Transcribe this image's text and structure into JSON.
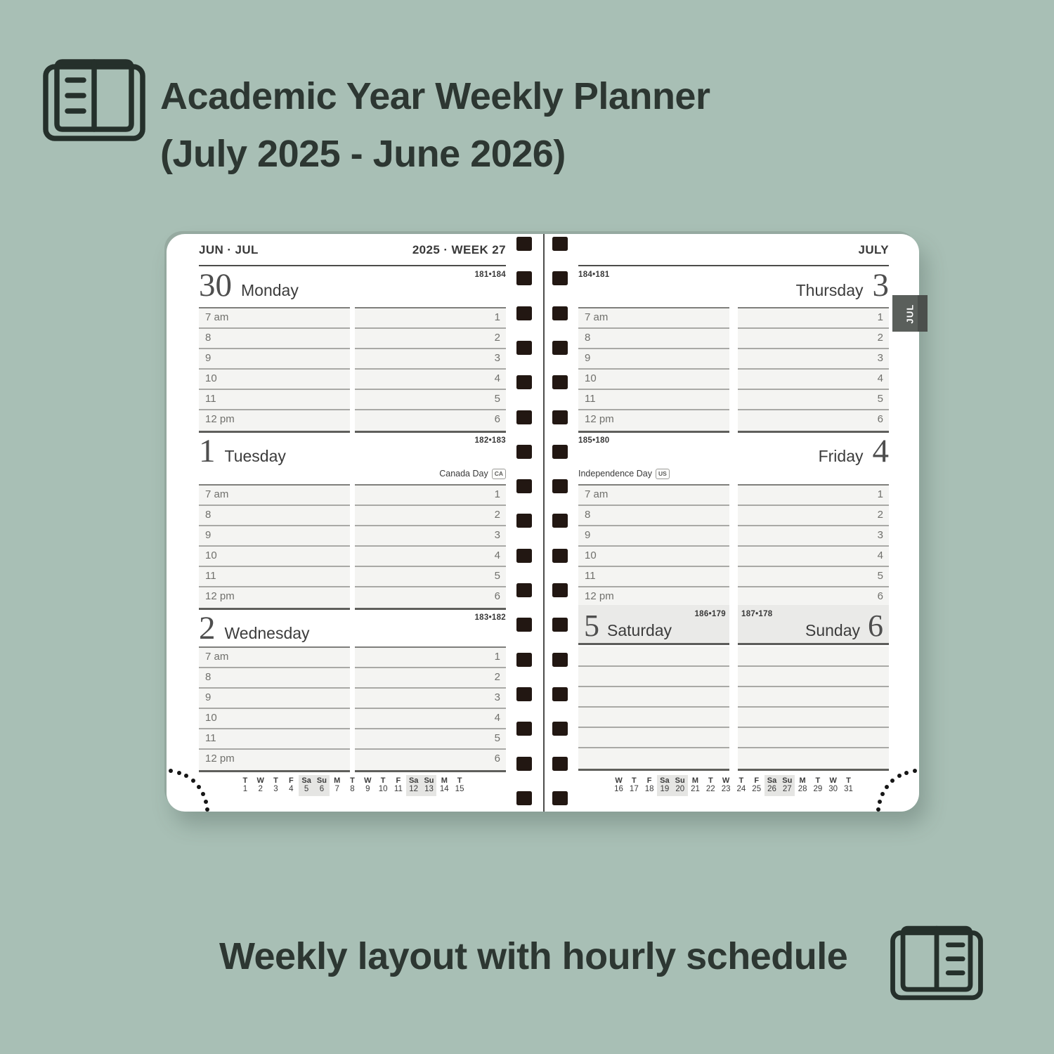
{
  "header": {
    "title_line1": "Academic Year Weekly Planner",
    "title_line2": "(July 2025 - June 2026)"
  },
  "caption": "Weekly layout with hourly schedule",
  "colors": {
    "background": "#a8bfb5",
    "page": "#ffffff",
    "title_text": "#2d3732",
    "tab": "#5a5f5b",
    "weekend_band": "#eaeae8",
    "hour_row_fill": "#f4f4f2",
    "spiral_hole": "#221712"
  },
  "planner": {
    "hours_morning": [
      "7 am",
      "8",
      "9",
      "10",
      "11",
      "12 pm"
    ],
    "hours_afternoon": [
      "1",
      "2",
      "3",
      "4",
      "5",
      "6"
    ],
    "left_page": {
      "header_left": "JUN · JUL",
      "header_right": "2025 · WEEK 27",
      "sections": [
        {
          "day": "30",
          "name": "Monday",
          "pages": "181•184"
        },
        {
          "day": "1",
          "name": "Tuesday",
          "pages": "182•183",
          "holiday": {
            "label": "Canada Day",
            "badge": "CA"
          }
        },
        {
          "day": "2",
          "name": "Wednesday",
          "pages": "183•182"
        }
      ],
      "mini_calendar": {
        "days": [
          {
            "w": "T",
            "d": "1"
          },
          {
            "w": "W",
            "d": "2"
          },
          {
            "w": "T",
            "d": "3"
          },
          {
            "w": "F",
            "d": "4"
          },
          {
            "w": "Sa",
            "d": "5"
          },
          {
            "w": "Su",
            "d": "6"
          },
          {
            "w": "M",
            "d": "7"
          },
          {
            "w": "T",
            "d": "8"
          },
          {
            "w": "W",
            "d": "9"
          },
          {
            "w": "T",
            "d": "10"
          },
          {
            "w": "F",
            "d": "11"
          },
          {
            "w": "Sa",
            "d": "12"
          },
          {
            "w": "Su",
            "d": "13"
          },
          {
            "w": "M",
            "d": "14"
          },
          {
            "w": "T",
            "d": "15"
          }
        ]
      }
    },
    "right_page": {
      "header": "JULY",
      "tab": "JUL",
      "sections": [
        {
          "day": "3",
          "name": "Thursday",
          "pages": "184•181"
        },
        {
          "day": "4",
          "name": "Friday",
          "pages": "185•180",
          "holiday": {
            "label": "Independence Day",
            "badge": "US"
          }
        }
      ],
      "weekend": {
        "saturday": {
          "day": "5",
          "name": "Saturday",
          "pages": "186•179"
        },
        "sunday": {
          "day": "6",
          "name": "Sunday",
          "pages": "187•178"
        }
      },
      "mini_calendar": {
        "days": [
          {
            "w": "W",
            "d": "16"
          },
          {
            "w": "T",
            "d": "17"
          },
          {
            "w": "F",
            "d": "18"
          },
          {
            "w": "Sa",
            "d": "19"
          },
          {
            "w": "Su",
            "d": "20"
          },
          {
            "w": "M",
            "d": "21"
          },
          {
            "w": "T",
            "d": "22"
          },
          {
            "w": "W",
            "d": "23"
          },
          {
            "w": "T",
            "d": "24"
          },
          {
            "w": "F",
            "d": "25"
          },
          {
            "w": "Sa",
            "d": "26"
          },
          {
            "w": "Su",
            "d": "27"
          },
          {
            "w": "M",
            "d": "28"
          },
          {
            "w": "T",
            "d": "29"
          },
          {
            "w": "W",
            "d": "30"
          },
          {
            "w": "T",
            "d": "31"
          }
        ]
      }
    }
  }
}
